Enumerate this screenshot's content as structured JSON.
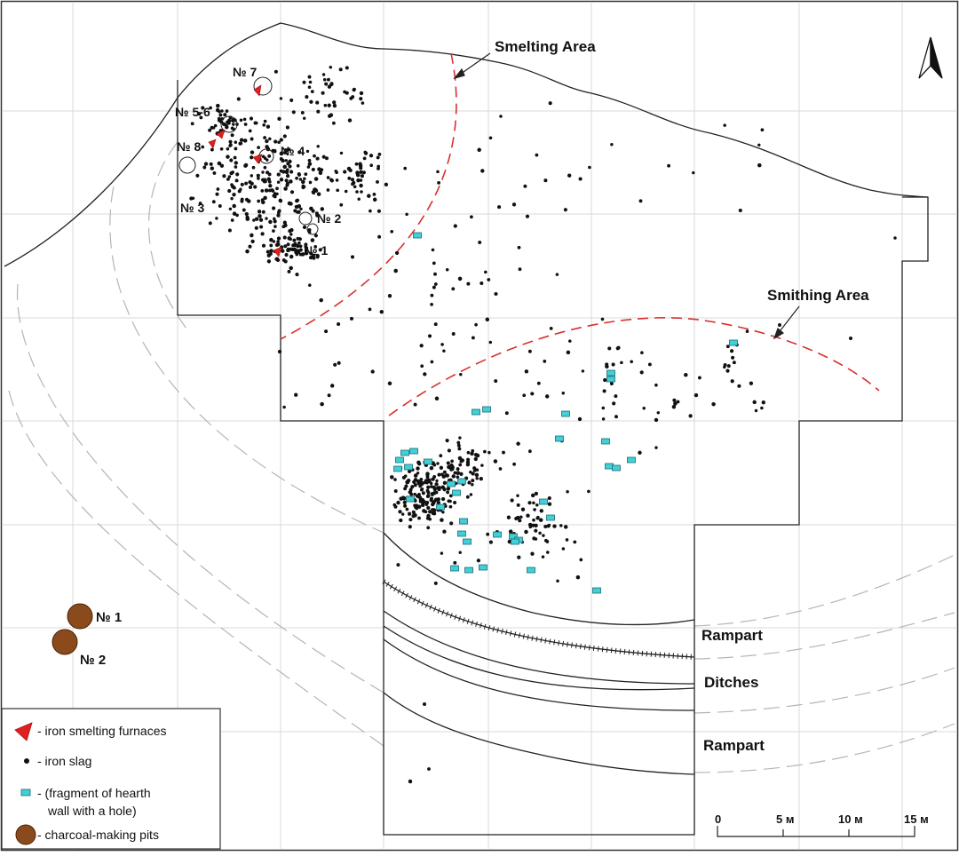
{
  "map": {
    "area_labels": {
      "smelting": "Smelting Area",
      "smithing": "Smithing Area"
    },
    "furnace_labels": {
      "f1": "№ 1",
      "f2": "№ 2",
      "f3": "№ 3",
      "f4": "№ 4",
      "f56": "№ 5-6",
      "f7": "№ 7",
      "f8": "№ 8"
    },
    "earthwork_labels": {
      "rampart_upper": "Rampart",
      "ditches": "Ditches",
      "rampart_lower": "Rampart"
    },
    "pit_labels": {
      "p1": "№ 1",
      "p2": "№ 2"
    },
    "legend": {
      "furnaces": "- iron smelting furnaces",
      "slag": "-  iron slag",
      "hearth_line1": "- (fragment of hearth",
      "hearth_line2": "wall with a hole)",
      "pits": "- charcoal-making pits"
    },
    "scale": {
      "ticks": [
        "0",
        "5 м",
        "10 м",
        "15 м"
      ]
    },
    "colors": {
      "furnace": "#e02020",
      "slag": "#111111",
      "hearth": "#40d0d8",
      "pit": "#8b4a1c",
      "area_boundary": "#d93030",
      "grid": "#d8d8d8"
    },
    "icons": {
      "north_arrow": "north-arrow-icon"
    }
  }
}
